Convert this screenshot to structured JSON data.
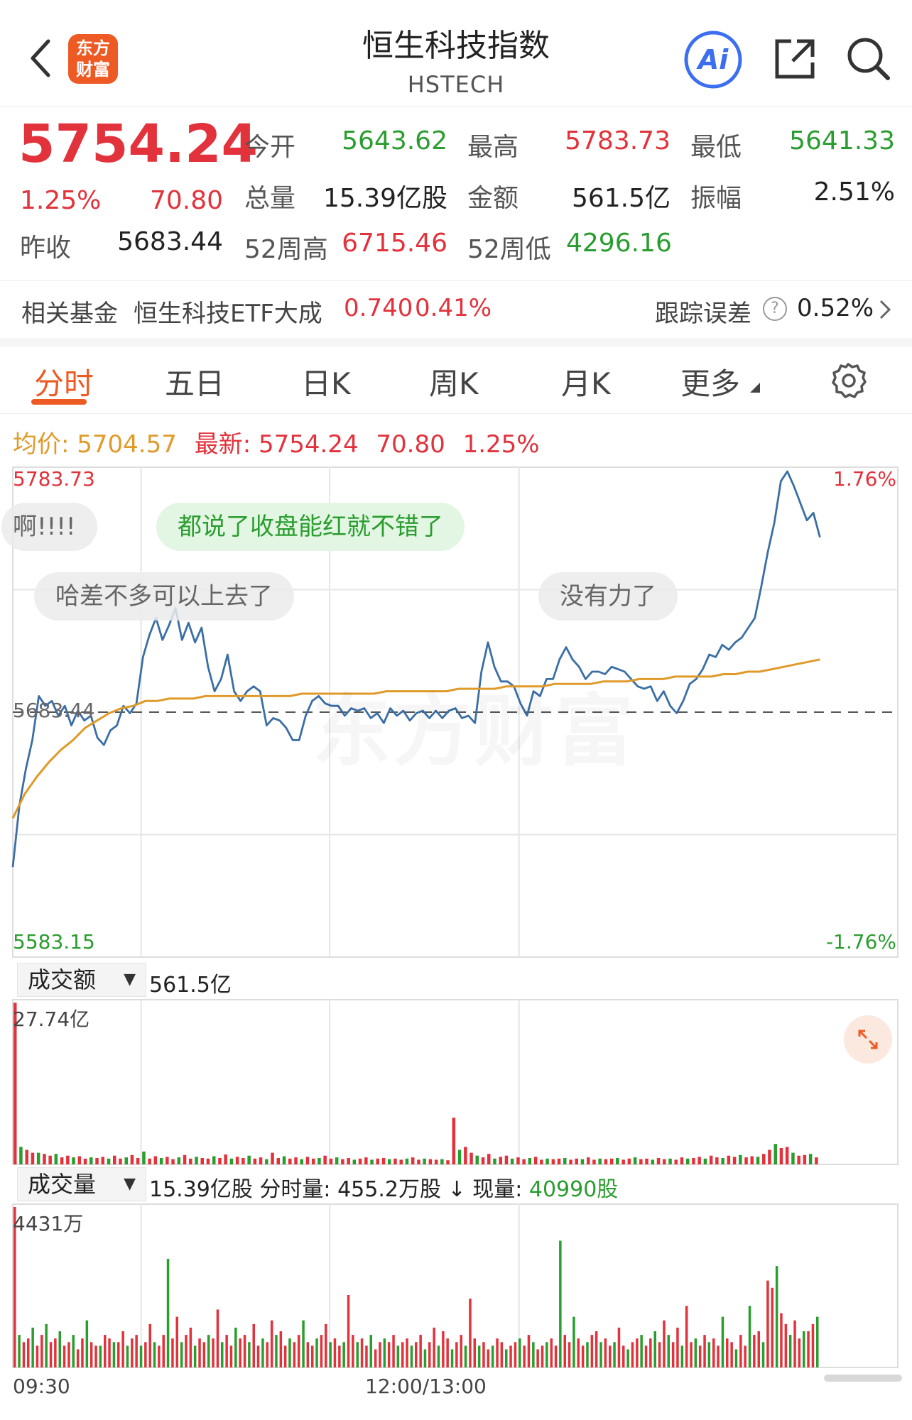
{
  "header": {
    "title": "恒生科技指数",
    "subtitle": "HSTECH",
    "logo_line1": "东方",
    "logo_line2": "财富",
    "ai_label": "Ai"
  },
  "quote": {
    "price": "5754.24",
    "change_pct": "1.25%",
    "change": "70.80",
    "prev_close_label": "昨收",
    "prev_close": "5683.44",
    "open_label": "今开",
    "open": "5643.62",
    "high_label": "最高",
    "high": "5783.73",
    "low_label": "最低",
    "low": "5641.33",
    "volume_label": "总量",
    "volume": "15.39亿股",
    "amount_label": "金额",
    "amount": "561.5亿",
    "amplitude_label": "振幅",
    "amplitude": "2.51%",
    "w52_high_label": "52周高",
    "w52_high": "6715.46",
    "w52_low_label": "52周低",
    "w52_low": "4296.16"
  },
  "fund": {
    "label": "相关基金",
    "name": "恒生科技ETF大成",
    "price": "0.740",
    "pct": "0.41%",
    "tracking_label": "跟踪误差",
    "tracking_value": "0.52%"
  },
  "tabs": [
    "分时",
    "五日",
    "日K",
    "周K",
    "月K",
    "更多"
  ],
  "info": {
    "avg_label": "均价:",
    "avg_value": "5704.57",
    "latest_label": "最新:",
    "latest_value": "5754.24",
    "latest_change": "70.80",
    "latest_pct": "1.25%"
  },
  "bubbles": [
    "啊!!!!",
    "都说了收盘能红就不错了",
    "哈差不多可以上去了",
    "没有力了"
  ],
  "watermark": "东方财富",
  "amount_panel": {
    "selector": "成交额",
    "total": "561.5亿",
    "max_label": "27.74亿"
  },
  "volume_panel": {
    "selector": "成交量",
    "total": "15.39亿股",
    "tick_label": "分时量:",
    "tick_value": "455.2万股",
    "now_label": "↓ 现量:",
    "now_value": "40990股",
    "max_label": "4431万"
  },
  "colors": {
    "up": "#e2323c",
    "down": "#2a9d2f",
    "price_line": "#3a6ea5",
    "avg_line": "#e09a2a",
    "accent": "#ee5a24"
  },
  "chart_data": {
    "type": "line",
    "ylim": [
      5583.15,
      5783.73
    ],
    "y_top_label": "5783.73",
    "y_mid_label": "5683.44",
    "y_bottom_label": "5583.15",
    "pct_top_label": "1.76%",
    "pct_bottom_label": "-1.76%",
    "x_labels": [
      "09:30",
      "12:00/13:00"
    ],
    "series": [
      {
        "role": "price",
        "values": [
          5620,
          5645,
          5660,
          5672,
          5690,
          5686,
          5688,
          5682,
          5686,
          5678,
          5684,
          5680,
          5682,
          5673,
          5670,
          5676,
          5678,
          5686,
          5683,
          5687,
          5706,
          5715,
          5722,
          5713,
          5719,
          5726,
          5713,
          5720,
          5712,
          5718,
          5702,
          5692,
          5697,
          5707,
          5692,
          5688,
          5692,
          5694,
          5692,
          5678,
          5681,
          5680,
          5677,
          5672,
          5672,
          5682,
          5688,
          5690,
          5687,
          5686,
          5686,
          5682,
          5685,
          5684,
          5685,
          5681,
          5683,
          5679,
          5685,
          5682,
          5684,
          5680,
          5683,
          5684,
          5681,
          5684,
          5681,
          5684,
          5685,
          5681,
          5682,
          5679,
          5700,
          5712,
          5702,
          5696,
          5696,
          5694,
          5687,
          5682,
          5692,
          5690,
          5697,
          5697,
          5705,
          5710,
          5705,
          5702,
          5697,
          5700,
          5700,
          5699,
          5702,
          5701,
          5700,
          5697,
          5694,
          5693,
          5694,
          5688,
          5692,
          5686,
          5683,
          5688,
          5695,
          5697,
          5701,
          5707,
          5706,
          5711,
          5709,
          5712,
          5714,
          5718,
          5722,
          5735,
          5749,
          5761,
          5778,
          5782,
          5776,
          5769,
          5762,
          5765,
          5755
        ]
      },
      {
        "role": "average",
        "values": [
          5640,
          5650,
          5657,
          5663,
          5668,
          5672,
          5677,
          5680,
          5683,
          5685,
          5686,
          5688,
          5688,
          5689,
          5689,
          5689,
          5690,
          5690,
          5690,
          5690,
          5690,
          5690,
          5690,
          5690,
          5691,
          5691,
          5691,
          5691,
          5691,
          5691,
          5691,
          5692,
          5692,
          5692,
          5692,
          5692,
          5692,
          5693,
          5693,
          5693,
          5693,
          5694,
          5694,
          5694,
          5694,
          5695,
          5695,
          5695,
          5695,
          5696,
          5696,
          5696,
          5697,
          5697,
          5697,
          5698,
          5698,
          5698,
          5698,
          5699,
          5699,
          5700,
          5700,
          5701,
          5702,
          5703,
          5704,
          5705
        ]
      }
    ],
    "amount_max": 27.74,
    "amount_values": [
      27.7,
      3,
      2.5,
      2,
      2,
      1.8,
      1.5,
      1.8,
      1.2,
      1.5,
      1.2,
      1.4,
      1,
      1.2,
      1.1,
      1.3,
      1,
      1.5,
      1,
      1.2,
      1.6,
      1.1,
      2.2,
      1,
      1.4,
      1.1,
      1.3,
      0.9,
      1.2,
      1.6,
      1,
      1.3,
      1.1,
      1,
      1.4,
      1.1,
      1.7,
      1,
      1.3,
      1.1,
      1.5,
      1,
      1.2,
      0.9,
      2,
      1.1,
      1.4,
      1,
      1.2,
      0.9,
      1.3,
      1,
      1.1,
      1.5,
      1,
      1.2,
      0.9,
      1.1,
      0.8,
      1,
      1.2,
      0.8,
      1,
      1.1,
      0.9,
      1,
      0.8,
      1,
      1.2,
      0.8,
      1,
      0.9,
      0.8,
      0.9,
      0.7,
      8,
      2.5,
      3,
      2,
      1.5,
      1.2,
      1.8,
      1,
      1.3,
      1.5,
      1,
      1.2,
      0.9,
      1.1,
      1.3,
      0.8,
      1,
      0.9,
      1,
      1.1,
      0.8,
      1,
      0.9,
      1.2,
      0.8,
      1,
      0.9,
      1,
      1.1,
      0.8,
      1,
      1.2,
      0.9,
      1,
      0.8,
      1.1,
      0.9,
      1,
      0.8,
      1.2,
      1,
      1.1,
      1.3,
      1,
      1.5,
      1.2,
      1.1,
      1.5,
      1.3,
      1.6,
      1.2,
      1.4,
      1.3,
      1.8,
      2.5,
      3.5,
      2.8,
      3,
      2,
      1.5,
      1.6,
      1.8,
      1.2
    ],
    "volume_max": 4431,
    "volume_values": [
      4431,
      900,
      700,
      800,
      1100,
      600,
      900,
      1200,
      700,
      800,
      1000,
      600,
      700,
      900,
      500,
      800,
      1300,
      700,
      600,
      600,
      900,
      800,
      700,
      700,
      1000,
      600,
      800,
      900,
      600,
      700,
      1200,
      700,
      600,
      900,
      3000,
      800,
      1400,
      700,
      900,
      1100,
      600,
      800,
      700,
      900,
      800,
      1600,
      700,
      900,
      600,
      1100,
      800,
      900,
      700,
      1200,
      600,
      800,
      700,
      1300,
      900,
      1000,
      600,
      800,
      700,
      900,
      1300,
      700,
      600,
      800,
      900,
      1200,
      700,
      800,
      600,
      700,
      2000,
      900,
      700,
      800,
      600,
      900,
      500,
      700,
      800,
      700,
      900,
      600,
      700,
      800,
      600,
      700,
      900,
      500,
      700,
      1100,
      600,
      1000,
      800,
      500,
      700,
      900,
      600,
      1900,
      800,
      600,
      700,
      500,
      600,
      800,
      700,
      500,
      600,
      700,
      800,
      600,
      900,
      700,
      500,
      600,
      700,
      800,
      600,
      3500,
      900,
      700,
      1400,
      800,
      600,
      700,
      900,
      1000,
      700,
      800,
      600,
      700,
      1100,
      600,
      500,
      700,
      800,
      900,
      600,
      800,
      1000,
      700,
      1300,
      900,
      700,
      1100,
      600,
      1700,
      700,
      800,
      600,
      900,
      700,
      800,
      600,
      1400,
      800,
      700,
      500,
      900,
      600,
      1700,
      900,
      1000,
      700,
      2400,
      2200,
      2800,
      1500,
      1200,
      900,
      1300,
      800,
      1000,
      1000,
      1200,
      1400
    ]
  }
}
